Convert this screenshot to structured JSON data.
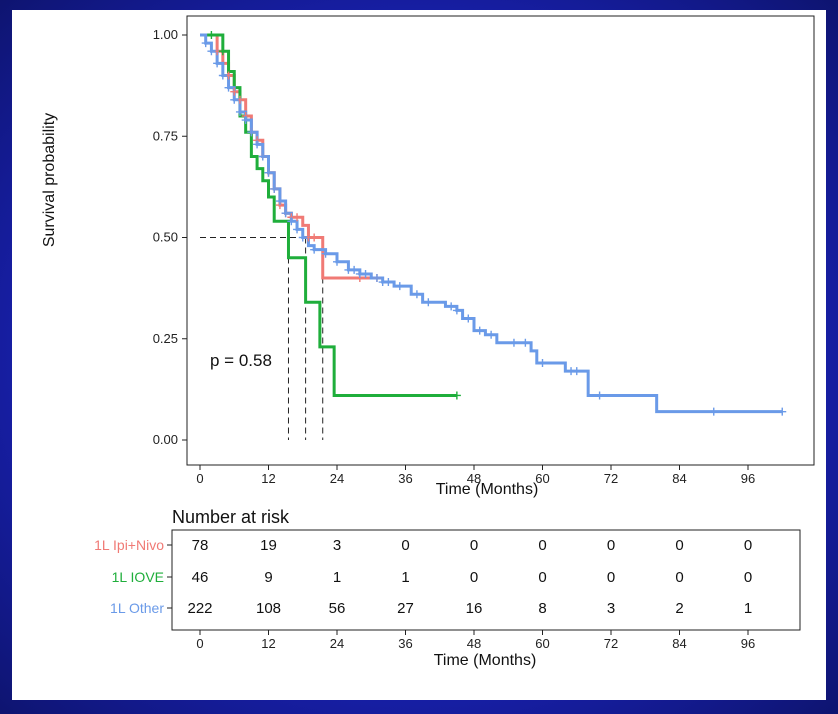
{
  "chart_data": {
    "type": "line",
    "subtype": "kaplan-meier",
    "xlabel": "Time (Months)",
    "ylabel": "Survival probability",
    "xlim": [
      -3,
      102
    ],
    "ylim": [
      0,
      1
    ],
    "x_ticks": [
      0,
      12,
      24,
      36,
      48,
      60,
      72,
      84,
      96
    ],
    "y_ticks": [
      0.0,
      0.25,
      0.5,
      0.75,
      1.0
    ],
    "y_tick_labels": [
      "0.00",
      "0.25",
      "0.50",
      "0.75",
      "1.00"
    ],
    "annotation": "p = 0.58",
    "median_reference": 0.5,
    "medians": [
      18.5,
      15.5,
      21.5
    ],
    "series": [
      {
        "name": "1L Ipi+Nivo",
        "color": "#f07a75",
        "points": [
          [
            0,
            1.0
          ],
          [
            2,
            1.0
          ],
          [
            3,
            0.96
          ],
          [
            4,
            0.93
          ],
          [
            5,
            0.9
          ],
          [
            6,
            0.86
          ],
          [
            7,
            0.84
          ],
          [
            8,
            0.8
          ],
          [
            9,
            0.76
          ],
          [
            10,
            0.74
          ],
          [
            11,
            0.7
          ],
          [
            12,
            0.66
          ],
          [
            13,
            0.62
          ],
          [
            14,
            0.58
          ],
          [
            15,
            0.56
          ],
          [
            16,
            0.55
          ],
          [
            17,
            0.55
          ],
          [
            18,
            0.53
          ],
          [
            19,
            0.5
          ],
          [
            21,
            0.5
          ],
          [
            21.5,
            0.4
          ],
          [
            27,
            0.4
          ],
          [
            31,
            0.4
          ]
        ],
        "censors": [
          3,
          5,
          6,
          7,
          8,
          9,
          10,
          11,
          12,
          13,
          14,
          15,
          16,
          17,
          19,
          20,
          28,
          31
        ]
      },
      {
        "name": "1L IOVE",
        "color": "#1fae3b",
        "points": [
          [
            0,
            1.0
          ],
          [
            3,
            1.0
          ],
          [
            4,
            0.96
          ],
          [
            5,
            0.91
          ],
          [
            6,
            0.87
          ],
          [
            7,
            0.8
          ],
          [
            8,
            0.76
          ],
          [
            9,
            0.7
          ],
          [
            10,
            0.67
          ],
          [
            11,
            0.64
          ],
          [
            12,
            0.6
          ],
          [
            13,
            0.54
          ],
          [
            15,
            0.54
          ],
          [
            15.5,
            0.45
          ],
          [
            18,
            0.45
          ],
          [
            18.5,
            0.34
          ],
          [
            20.5,
            0.34
          ],
          [
            21,
            0.23
          ],
          [
            23,
            0.23
          ],
          [
            23.5,
            0.11
          ],
          [
            45,
            0.11
          ]
        ],
        "censors": [
          2,
          4,
          45
        ]
      },
      {
        "name": "1L Other",
        "color": "#6a9ae8",
        "points": [
          [
            0,
            1.0
          ],
          [
            1,
            0.98
          ],
          [
            2,
            0.96
          ],
          [
            3,
            0.93
          ],
          [
            4,
            0.9
          ],
          [
            5,
            0.87
          ],
          [
            6,
            0.84
          ],
          [
            7,
            0.81
          ],
          [
            8,
            0.79
          ],
          [
            9,
            0.76
          ],
          [
            10,
            0.73
          ],
          [
            11,
            0.7
          ],
          [
            12,
            0.66
          ],
          [
            13,
            0.62
          ],
          [
            14,
            0.59
          ],
          [
            15,
            0.56
          ],
          [
            16,
            0.54
          ],
          [
            17,
            0.52
          ],
          [
            18,
            0.5
          ],
          [
            19,
            0.48
          ],
          [
            20,
            0.47
          ],
          [
            22,
            0.46
          ],
          [
            24,
            0.44
          ],
          [
            26,
            0.42
          ],
          [
            28,
            0.41
          ],
          [
            30,
            0.4
          ],
          [
            32,
            0.39
          ],
          [
            34,
            0.38
          ],
          [
            37,
            0.36
          ],
          [
            39,
            0.34
          ],
          [
            43,
            0.33
          ],
          [
            45,
            0.32
          ],
          [
            46,
            0.3
          ],
          [
            48,
            0.27
          ],
          [
            50,
            0.26
          ],
          [
            52,
            0.24
          ],
          [
            56,
            0.24
          ],
          [
            58,
            0.22
          ],
          [
            59,
            0.19
          ],
          [
            63,
            0.19
          ],
          [
            64,
            0.17
          ],
          [
            67,
            0.17
          ],
          [
            68,
            0.11
          ],
          [
            80,
            0.11
          ],
          [
            80,
            0.07
          ],
          [
            102,
            0.07
          ]
        ],
        "censors": [
          1,
          2,
          3,
          4,
          5,
          6,
          7,
          8,
          9,
          10,
          11,
          12,
          13,
          14,
          15,
          16,
          17,
          18,
          20,
          22,
          24,
          26,
          27,
          28,
          29,
          31,
          32,
          33,
          35,
          38,
          40,
          44,
          45,
          47,
          49,
          51,
          55,
          57,
          60,
          65,
          66,
          70,
          90,
          102
        ]
      }
    ],
    "risk_table": {
      "title": "Number at risk",
      "xlabel": "Time (Months)",
      "times": [
        0,
        12,
        24,
        36,
        48,
        60,
        72,
        84,
        96
      ],
      "rows": [
        {
          "name": "1L Ipi+Nivo",
          "color": "#f07a75",
          "values": [
            78,
            19,
            3,
            0,
            0,
            0,
            0,
            0,
            0
          ]
        },
        {
          "name": "1L IOVE",
          "color": "#1fae3b",
          "values": [
            46,
            9,
            1,
            1,
            0,
            0,
            0,
            0,
            0
          ]
        },
        {
          "name": "1L Other",
          "color": "#6a9ae8",
          "values": [
            222,
            108,
            56,
            27,
            16,
            8,
            3,
            2,
            1
          ]
        }
      ]
    }
  }
}
